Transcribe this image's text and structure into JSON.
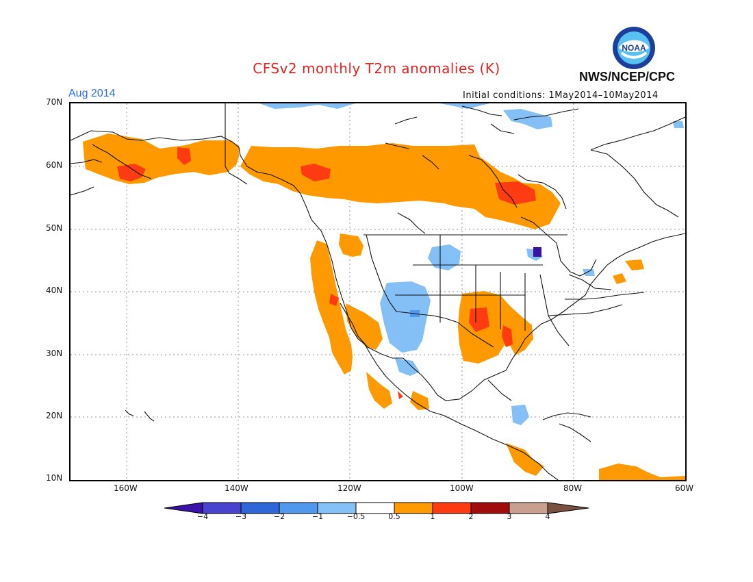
{
  "header": {
    "title": "CFSv2 monthly T2m anomalies (K)",
    "agency": "NWS/NCEP/CPC",
    "period": "Aug 2014",
    "initial_conditions": "Initial conditions: 1May2014–10May2014",
    "logo_text": "NOAA"
  },
  "map": {
    "lat_labels": [
      "70N",
      "60N",
      "50N",
      "40N",
      "30N",
      "20N",
      "10N"
    ],
    "lon_labels": [
      "160W",
      "140W",
      "120W",
      "100W",
      "80W",
      "60W"
    ],
    "projection": "lat-lon",
    "lat_range": [
      10,
      70
    ],
    "lon_range": [
      -170,
      -60
    ]
  },
  "legend": {
    "ticks": [
      "−4",
      "−3",
      "−2",
      "−1",
      "−0.5",
      "0.5",
      "1",
      "2",
      "3",
      "4"
    ],
    "colors": [
      "#3a12a8",
      "#4a43d0",
      "#2f66d8",
      "#4f98ee",
      "#84bff5",
      "#ffffff",
      "#ff9900",
      "#ff3b12",
      "#a10d0d",
      "#c9a08f",
      "#7a5141"
    ]
  },
  "colors": {
    "title": "#e32222",
    "period": "#2a6df0",
    "warm_1": "#ff9900",
    "warm_2": "#ff3b12",
    "cool_1": "#84bff5",
    "cool_2": "#4f98ee",
    "cool_3": "#2f66d8",
    "cool_4": "#3a12a8"
  }
}
